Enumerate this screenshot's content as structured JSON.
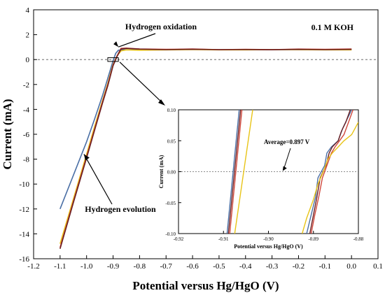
{
  "chart_data": [
    {
      "type": "line",
      "xlabel": "Potential versus Hg/HgO (V)",
      "ylabel": "Current (mA)",
      "xlim": [
        -1.2,
        0.1
      ],
      "ylim": [
        -16,
        4
      ],
      "xticks": [
        "-1.2",
        "-1.1",
        "-1.0",
        "-0.9",
        "-0.8",
        "-0.7",
        "-0.6",
        "-0.5",
        "-0.4",
        "-0.3",
        "-0.2",
        "-0.1",
        "0.0",
        "0.1"
      ],
      "yticks": [
        "4",
        "2",
        "0",
        "-2",
        "-4",
        "-6",
        "-8",
        "-10",
        "-12",
        "-14",
        "-16"
      ],
      "legend_text": "0.1 M KOH",
      "annotations": [
        {
          "text": "Hydrogen oxidation",
          "x": -0.88,
          "y": 0.9
        },
        {
          "text": "Hydrogen evolution",
          "x": -1.07,
          "y": -13.5
        }
      ],
      "reference_line_y": 0,
      "series": [
        {
          "color": "#4a6fa5",
          "x": [
            -1.1,
            -1.05,
            -1.0,
            -0.97,
            -0.94,
            -0.92,
            -0.9,
            -0.89,
            -0.88,
            -0.86,
            -0.8,
            -0.7,
            -0.6,
            -0.5,
            -0.4,
            -0.3,
            -0.2,
            -0.1,
            0.0
          ],
          "y": [
            -12.0,
            -9.3,
            -6.6,
            -4.8,
            -2.9,
            -1.5,
            -0.1,
            0.5,
            0.75,
            0.8,
            0.78,
            0.8,
            0.82,
            0.8,
            0.79,
            0.8,
            0.81,
            0.8,
            0.8
          ]
        },
        {
          "color": "#e8c417",
          "x": [
            -1.1,
            -1.05,
            -1.0,
            -0.97,
            -0.94,
            -0.92,
            -0.9,
            -0.885,
            -0.87,
            -0.85,
            -0.8,
            -0.7,
            -0.6,
            -0.5,
            -0.4,
            -0.3,
            -0.2,
            -0.1,
            0.0
          ],
          "y": [
            -14.8,
            -11.2,
            -7.6,
            -5.4,
            -3.3,
            -1.9,
            -0.4,
            0.3,
            0.7,
            0.78,
            0.75,
            0.78,
            0.8,
            0.78,
            0.78,
            0.8,
            0.79,
            0.78,
            0.78
          ]
        },
        {
          "color": "#d0463a",
          "x": [
            -1.1,
            -1.05,
            -1.0,
            -0.97,
            -0.94,
            -0.92,
            -0.9,
            -0.885,
            -0.87,
            -0.85,
            -0.8,
            -0.7,
            -0.6,
            -0.5,
            -0.4,
            -0.3,
            -0.2,
            -0.1,
            0.0
          ],
          "y": [
            -15.1,
            -11.4,
            -7.8,
            -5.6,
            -3.4,
            -2.0,
            -0.45,
            0.3,
            0.9,
            0.92,
            0.85,
            0.82,
            0.85,
            0.8,
            0.82,
            0.8,
            0.84,
            0.82,
            0.85
          ]
        },
        {
          "color": "#6b1f22",
          "x": [
            -1.1,
            -1.05,
            -1.0,
            -0.97,
            -0.94,
            -0.92,
            -0.9,
            -0.885,
            -0.87,
            -0.85,
            -0.8,
            -0.7,
            -0.6,
            -0.5,
            -0.4,
            -0.3,
            -0.2,
            -0.1,
            0.0
          ],
          "y": [
            -15.2,
            -11.5,
            -7.9,
            -5.7,
            -3.5,
            -2.1,
            -0.5,
            0.25,
            0.85,
            0.9,
            0.84,
            0.8,
            0.83,
            0.8,
            0.81,
            0.79,
            0.82,
            0.8,
            0.82
          ]
        }
      ]
    },
    {
      "type": "line",
      "xlabel": "Potential versus Hg/HgO (V)",
      "ylabel": "Current (mA)",
      "xlim": [
        -0.92,
        -0.88
      ],
      "ylim": [
        -0.1,
        0.1
      ],
      "xticks": [
        "-0.92",
        "-0.91",
        "-0.90",
        "-0.89",
        "-0.88"
      ],
      "yticks": [
        "0.10",
        "0.05",
        "0.00",
        "-0.05",
        "-0.10"
      ],
      "annotation": {
        "text": "Average=0.897 V",
        "x": -0.897,
        "y": 0.0
      },
      "reference_line_y": 0,
      "series": [
        {
          "color": "#4a6fa5",
          "x": [
            -0.9092,
            -0.9065
          ],
          "y": [
            -0.1,
            0.1
          ]
        },
        {
          "color": "#6b1f22",
          "x": [
            -0.9089,
            -0.9062
          ],
          "y": [
            -0.1,
            0.1
          ]
        },
        {
          "color": "#d0463a",
          "x": [
            -0.9086,
            -0.9059
          ],
          "y": [
            -0.1,
            0.1
          ]
        },
        {
          "color": "#e8c417",
          "x": [
            -0.9075,
            -0.9035
          ],
          "y": [
            -0.1,
            0.1
          ]
        },
        {
          "color": "#4a6fa5",
          "x": [
            -0.8915,
            -0.8905,
            -0.8895,
            -0.889,
            -0.8875,
            -0.887,
            -0.886,
            -0.8845,
            -0.8835,
            -0.8825,
            -0.8815
          ],
          "y": [
            -0.1,
            -0.07,
            -0.04,
            -0.01,
            0.01,
            0.03,
            0.04,
            0.05,
            0.07,
            0.085,
            0.1
          ]
        },
        {
          "color": "#6b1f22",
          "x": [
            -0.8908,
            -0.89,
            -0.8892,
            -0.8885,
            -0.8872,
            -0.8865,
            -0.8858,
            -0.8845,
            -0.8838,
            -0.8828,
            -0.8818
          ],
          "y": [
            -0.1,
            -0.07,
            -0.04,
            -0.01,
            0.01,
            0.03,
            0.04,
            0.05,
            0.065,
            0.08,
            0.1
          ]
        },
        {
          "color": "#d0463a",
          "x": [
            -0.8905,
            -0.8897,
            -0.8888,
            -0.888,
            -0.887,
            -0.886,
            -0.8852,
            -0.8842,
            -0.8832,
            -0.8822,
            -0.8812
          ],
          "y": [
            -0.1,
            -0.07,
            -0.04,
            -0.01,
            0.01,
            0.03,
            0.04,
            0.05,
            0.06,
            0.08,
            0.1
          ]
        },
        {
          "color": "#e8c417",
          "x": [
            -0.8925,
            -0.8915,
            -0.89,
            -0.889,
            -0.8878,
            -0.8868,
            -0.8858,
            -0.8845,
            -0.8832,
            -0.8815,
            -0.88
          ],
          "y": [
            -0.1,
            -0.075,
            -0.045,
            -0.02,
            0.0,
            0.02,
            0.03,
            0.04,
            0.05,
            0.06,
            0.08
          ]
        }
      ]
    }
  ]
}
